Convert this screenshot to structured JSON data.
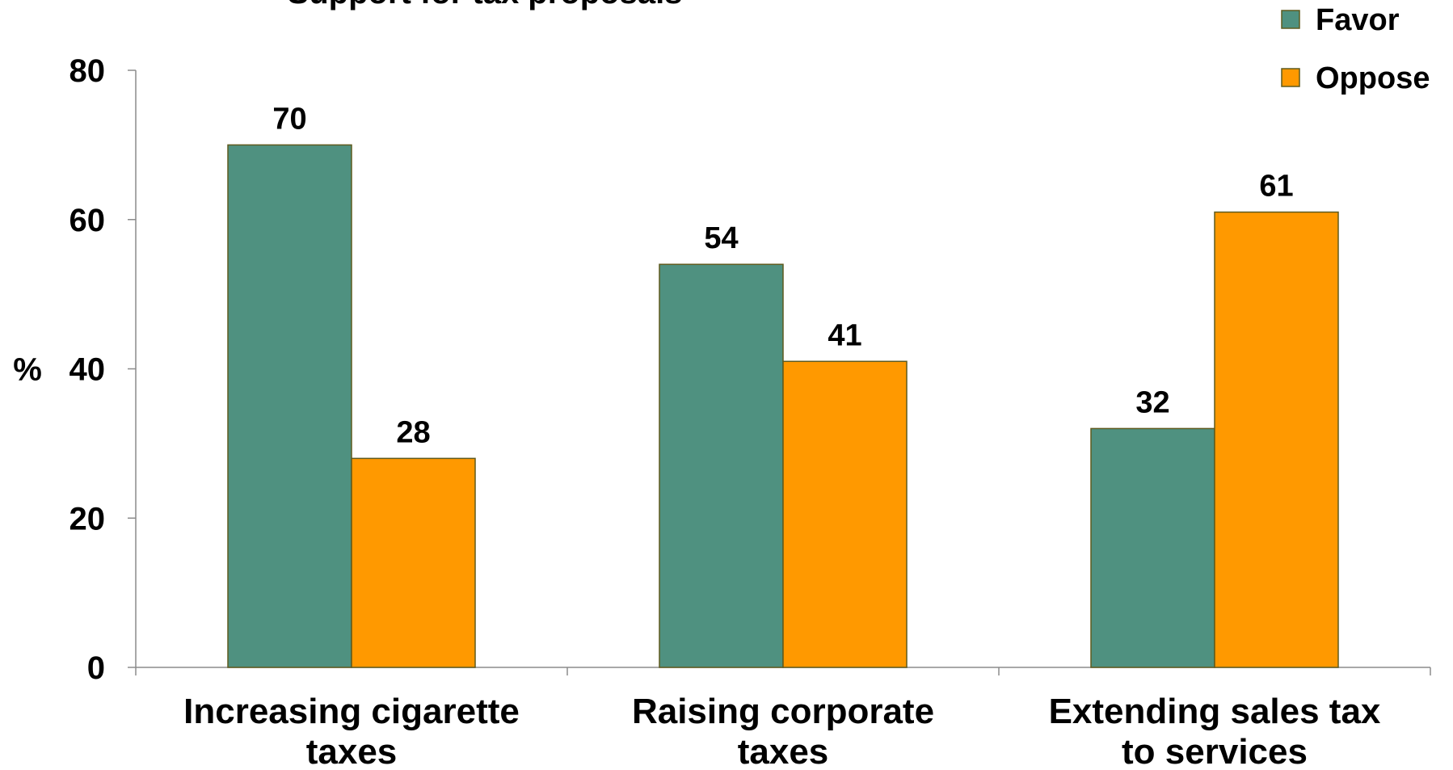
{
  "chart_data": {
    "type": "bar",
    "title": "Support for tax proposals",
    "ylabel": "%",
    "xlabel": "",
    "ylim": [
      0,
      80
    ],
    "yticks": [
      0,
      20,
      40,
      60,
      80
    ],
    "categories": [
      [
        "Increasing cigarette",
        "taxes"
      ],
      [
        "Raising corporate",
        "taxes"
      ],
      [
        "Extending sales tax",
        "to services"
      ]
    ],
    "series": [
      {
        "name": "Favor",
        "color": "#4F9180",
        "values": [
          70,
          54,
          32
        ]
      },
      {
        "name": "Oppose",
        "color": "#FF9900",
        "values": [
          28,
          41,
          61
        ]
      }
    ],
    "data_labels": true,
    "grid": false,
    "legend": "top-right"
  }
}
